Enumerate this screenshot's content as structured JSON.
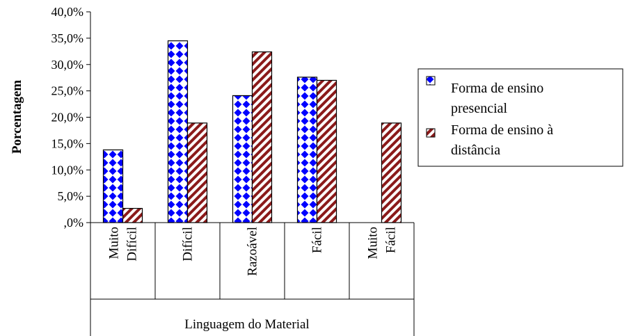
{
  "chart_data": {
    "type": "bar",
    "title": "",
    "xlabel": "Linguagem do Material",
    "ylabel": "Porcentagem",
    "ylim": [
      0,
      40
    ],
    "yticks": [
      "40,0%",
      "35,0%",
      "30,0%",
      "25,0%",
      "20,0%",
      "15,0%",
      "10,0%",
      "5,0%",
      ",0%"
    ],
    "categories": [
      [
        "Muito",
        "Difícil"
      ],
      [
        "Difícil"
      ],
      [
        "Razoável"
      ],
      [
        "Fácil"
      ],
      [
        "Muito",
        "Fácil"
      ]
    ],
    "series": [
      {
        "name_lines": [
          "Forma de ensino",
          "presencial"
        ],
        "values": [
          13.8,
          34.5,
          24.1,
          27.6,
          0
        ],
        "color": "#0000ff"
      },
      {
        "name_lines": [
          "Forma de ensino à",
          "distância"
        ],
        "values": [
          2.7,
          18.9,
          32.4,
          27.0,
          18.9
        ],
        "color": "#8b1a1a"
      }
    ],
    "legend": "right",
    "grid": false
  }
}
